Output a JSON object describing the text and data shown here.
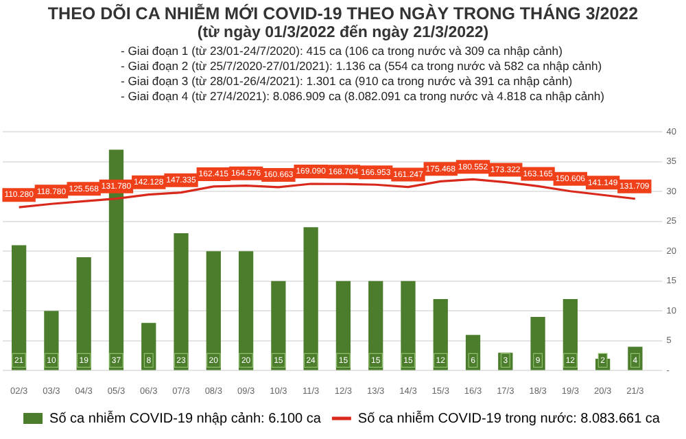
{
  "chart_data": {
    "type": "bar",
    "title": "THEO DÕI CA NHIỄM MỚI COVID-19 THEO NGÀY TRONG THÁNG 3/2022",
    "subtitle": "(từ ngày 01/3/2022 đến ngày 21/3/2022)",
    "annotations": [
      "- Giai đoạn 1 (từ 23/01-24/7/2020): 415 ca (106 ca trong nước và 309 ca nhập cảnh)",
      "- Giai đoạn 2 (từ 25/7/2020-27/01/2021): 1.136 ca (554 ca trong nước và 582 ca nhập cảnh)",
      "- Giai đoạn 3 (từ 28/01-26/4/2021): 1.301 ca (910 ca trong nước và 391 ca nhập cảnh)",
      "- Giai đoạn 4 (từ 27/4/2021): 8.086.909 ca (8.082.091 ca trong nước và 4.818 ca nhập cảnh)"
    ],
    "categories": [
      "02/3",
      "03/3",
      "04/3",
      "05/3",
      "06/3",
      "07/3",
      "08/3",
      "09/3",
      "10/3",
      "11/3",
      "12/3",
      "13/3",
      "14/3",
      "15/3",
      "16/3",
      "17/3",
      "18/3",
      "19/3",
      "20/3",
      "21/3"
    ],
    "series": [
      {
        "name": "Số ca nhiễm COVID-19 nhập cảnh: 6.100 ca",
        "color": "#4b7d2c",
        "values": [
          21,
          10,
          19,
          37,
          8,
          23,
          20,
          20,
          15,
          24,
          15,
          15,
          15,
          12,
          6,
          3,
          9,
          12,
          2,
          4
        ],
        "value_labels": [
          "21",
          "10",
          "19",
          "37",
          "8",
          "23",
          "20",
          "20",
          "15",
          "24",
          "15",
          "15",
          "15",
          "12",
          "6",
          "3",
          "9",
          "12",
          "2",
          "4"
        ]
      },
      {
        "name": "Số ca nhiễm COVID-19 trong nước: 8.083.661 ca",
        "type": "line",
        "axis": "y2",
        "color": "#d9291c",
        "values": [
          110280,
          118780,
          125568,
          131780,
          142128,
          147335,
          162415,
          164576,
          160663,
          169090,
          168704,
          166953,
          161247,
          175468,
          180552,
          173322,
          163165,
          150606,
          141149,
          131709
        ],
        "value_labels": [
          "110.280",
          "118.780",
          "125.568",
          "131.780",
          "142.128",
          "147.335",
          "162.415",
          "164.576",
          "160.663",
          "169.090",
          "168.704",
          "166.953",
          "161.247",
          "175.468",
          "180.552",
          "173.322",
          "163.165",
          "150.606",
          "141.149",
          "131.709"
        ]
      }
    ],
    "ylim": [
      0,
      40
    ],
    "yticks": [
      {
        "value": 0,
        "label": "-"
      },
      5,
      10,
      15,
      20,
      25,
      30,
      35,
      40
    ],
    "tick_labels": [
      "x",
      "y"
    ],
    "grid": "y",
    "legend": "bottom",
    "marker": "none",
    "line_style": "solid"
  }
}
